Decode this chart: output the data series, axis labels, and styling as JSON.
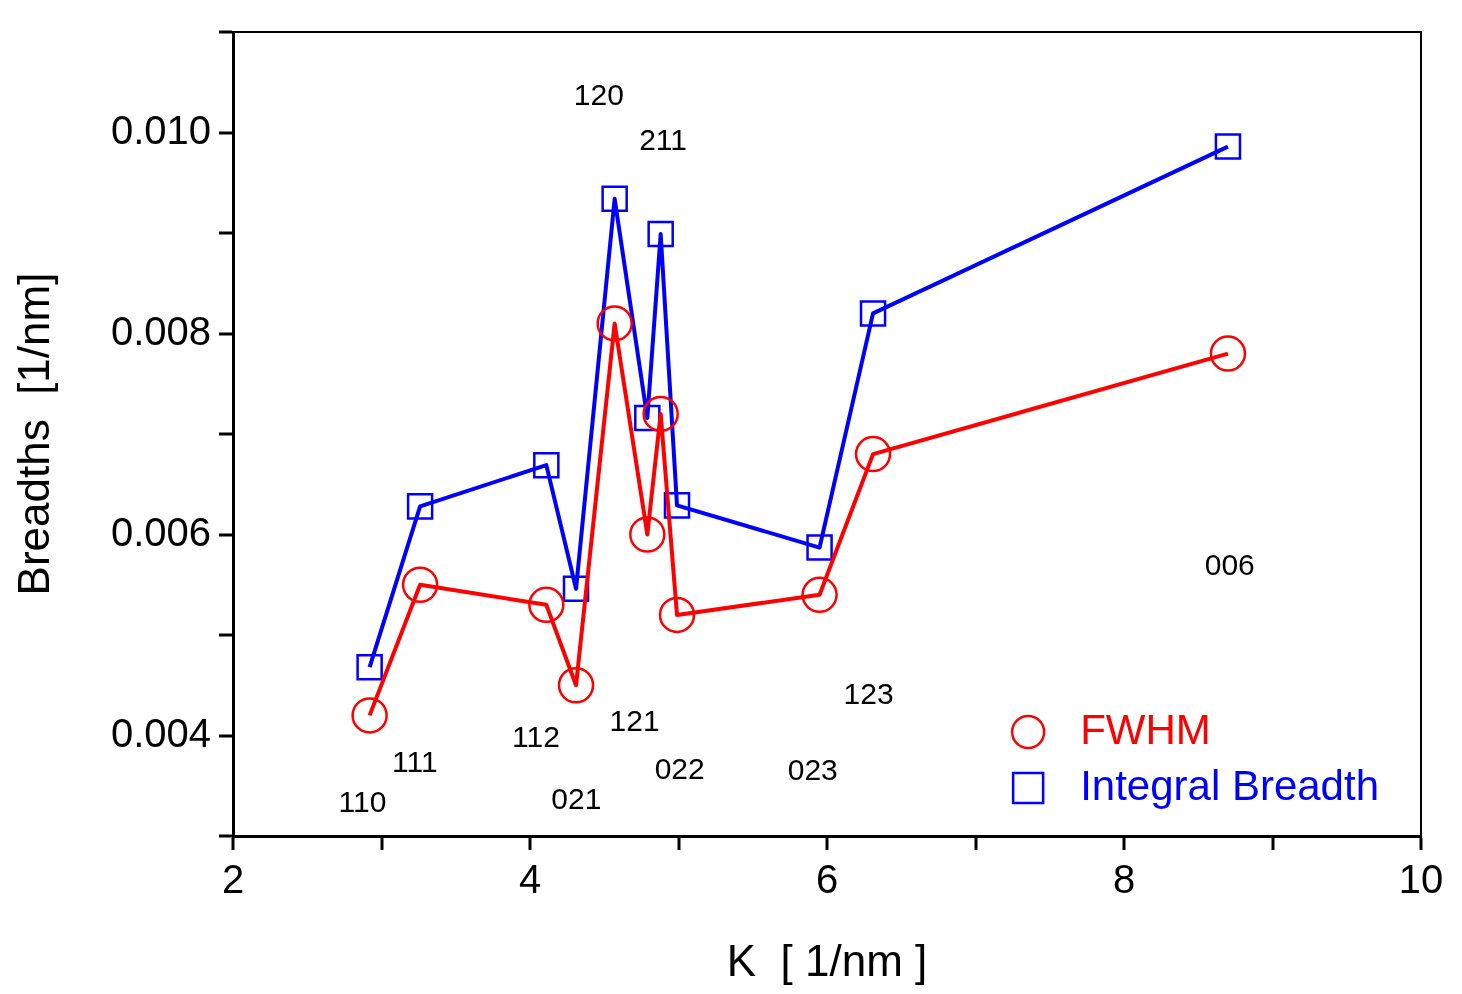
{
  "chart_data": {
    "type": "line",
    "xlabel": "K  [ 1/nm ]",
    "ylabel": "Breadths  [1/nm]",
    "x": [
      2.92,
      3.26,
      4.11,
      4.31,
      4.57,
      4.79,
      4.88,
      4.99,
      5.95,
      6.31,
      8.7
    ],
    "series": [
      {
        "name": "FWHM",
        "color": "#ff0000",
        "marker": "circle",
        "values": [
          0.0042,
          0.0055,
          0.0053,
          0.0045,
          0.0081,
          0.006,
          0.0072,
          0.0052,
          0.0054,
          0.0068,
          0.0078
        ]
      },
      {
        "name": "Integral Breadth",
        "color": "#0000ff",
        "marker": "square",
        "values": [
          0.00468,
          0.00628,
          0.00669,
          0.00546,
          0.00934,
          0.00716,
          0.00899,
          0.00629,
          0.00587,
          0.0082,
          0.00986
        ]
      }
    ],
    "xlim": [
      2,
      10
    ],
    "ylim": [
      0.003,
      0.011
    ],
    "xticks": [
      2,
      {
        "value": 3,
        "label": null
      },
      4,
      {
        "value": 5,
        "label": null
      },
      6,
      {
        "value": 7,
        "label": null
      },
      8,
      {
        "value": 9,
        "label": null
      },
      10
    ],
    "yticks": [
      {
        "value": 0.003,
        "label": null
      },
      0.004,
      {
        "value": 0.005,
        "label": null
      },
      0.006,
      {
        "value": 0.007,
        "label": null
      },
      0.008,
      {
        "value": 0.009,
        "label": null
      },
      {
        "value": 0.01,
        "label": "0.010"
      },
      {
        "value": 0.011,
        "label": null
      }
    ],
    "grid": false,
    "legend": "bottom right",
    "line_style": "solid",
    "annotations": [
      "120",
      "211",
      "006",
      "123",
      "121",
      "112",
      "111",
      "022",
      "023",
      "021",
      "110"
    ]
  }
}
